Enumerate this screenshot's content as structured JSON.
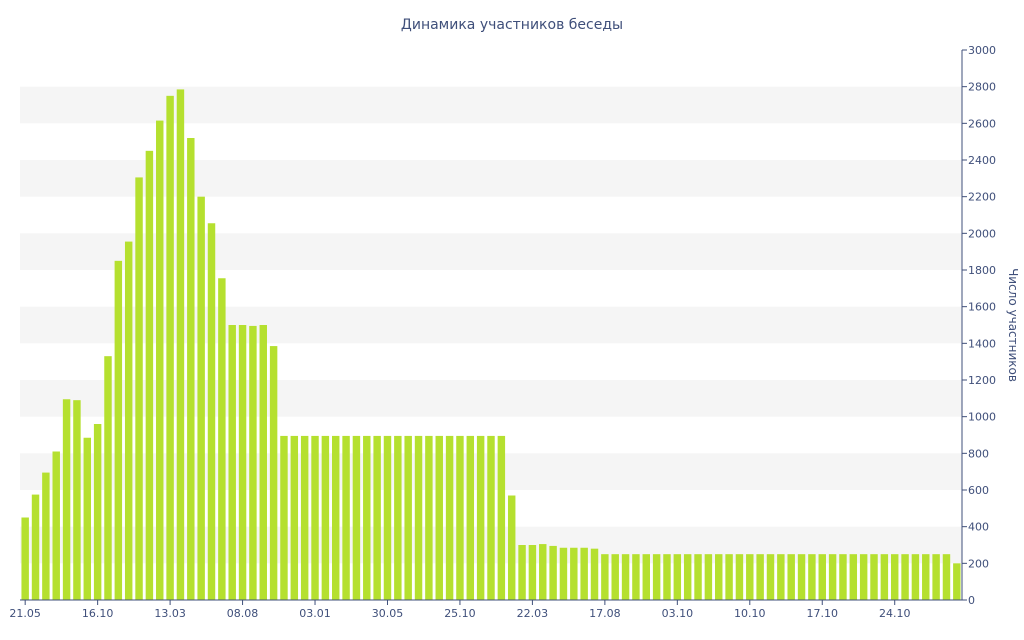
{
  "chart_data": {
    "type": "bar",
    "title": "Динамика участников беседы",
    "xlabel": "",
    "ylabel": "Число участников",
    "ylim": [
      0,
      3000
    ],
    "y_ticks": [
      "0",
      "200",
      "400",
      "600",
      "800",
      "1000",
      "1200",
      "1400",
      "1600",
      "1800",
      "2000",
      "2200",
      "2400",
      "2600",
      "2800",
      "3000"
    ],
    "x_tick_labels": [
      {
        "label": "21.05",
        "index": 0
      },
      {
        "label": "16.10",
        "index": 7
      },
      {
        "label": "13.03",
        "index": 14
      },
      {
        "label": "08.08",
        "index": 21
      },
      {
        "label": "03.01",
        "index": 28
      },
      {
        "label": "30.05",
        "index": 35
      },
      {
        "label": "25.10",
        "index": 42
      },
      {
        "label": "22.03",
        "index": 49
      },
      {
        "label": "17.08",
        "index": 56
      },
      {
        "label": "03.10",
        "index": 63
      },
      {
        "label": "10.10",
        "index": 70
      },
      {
        "label": "17.10",
        "index": 77
      },
      {
        "label": "24.10",
        "index": 84
      }
    ],
    "grid": "alternating horizontal bands",
    "y_axis_position": "right",
    "legend": "none",
    "bar_color": "#b5e02f",
    "values": [
      450,
      575,
      695,
      810,
      1095,
      1090,
      885,
      960,
      1330,
      1850,
      1955,
      2305,
      2450,
      2615,
      2750,
      2785,
      2520,
      2200,
      2055,
      1755,
      1500,
      1500,
      1495,
      1500,
      1385,
      895,
      895,
      895,
      895,
      895,
      895,
      895,
      895,
      895,
      895,
      895,
      895,
      895,
      895,
      895,
      895,
      895,
      895,
      895,
      895,
      895,
      895,
      570,
      300,
      300,
      305,
      295,
      285,
      285,
      285,
      280,
      250,
      250,
      250,
      250,
      250,
      250,
      250,
      250,
      250,
      250,
      250,
      250,
      250,
      250,
      250,
      250,
      250,
      250,
      250,
      250,
      250,
      250,
      250,
      250,
      250,
      250,
      250,
      250,
      250,
      250,
      250,
      250,
      250,
      250,
      200
    ]
  }
}
